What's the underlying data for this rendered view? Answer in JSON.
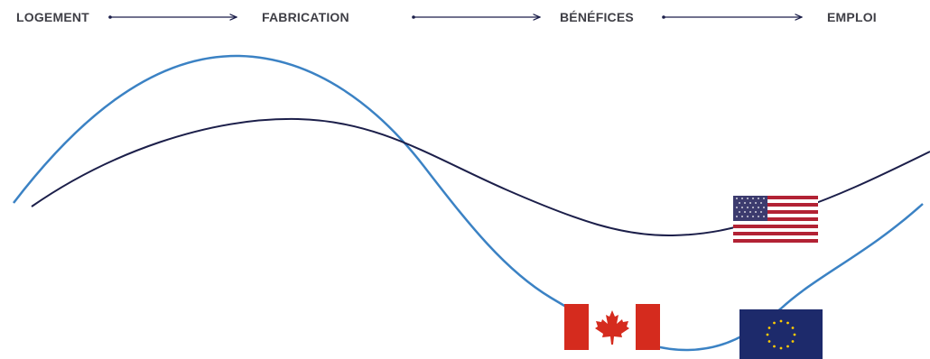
{
  "stages": {
    "items": [
      {
        "label": "LOGEMENT"
      },
      {
        "label": "FABRICATION"
      },
      {
        "label": "BÉNÉFICES"
      },
      {
        "label": "EMPLOI"
      }
    ]
  },
  "colors": {
    "label_text": "#3f3f46",
    "arrow": "#1c1f4a",
    "curve_dark": "#1c1f4a",
    "curve_light": "#3b82c4",
    "us_red": "#b22234",
    "us_blue": "#3c3b6e",
    "canada_red": "#d52b1e",
    "eu_blue": "#1d2a6b",
    "eu_star": "#ffcc00"
  },
  "icons": {
    "flag_us": "united-states-flag-icon",
    "flag_canada": "canada-flag-icon",
    "flag_eu": "european-union-flag-icon"
  }
}
